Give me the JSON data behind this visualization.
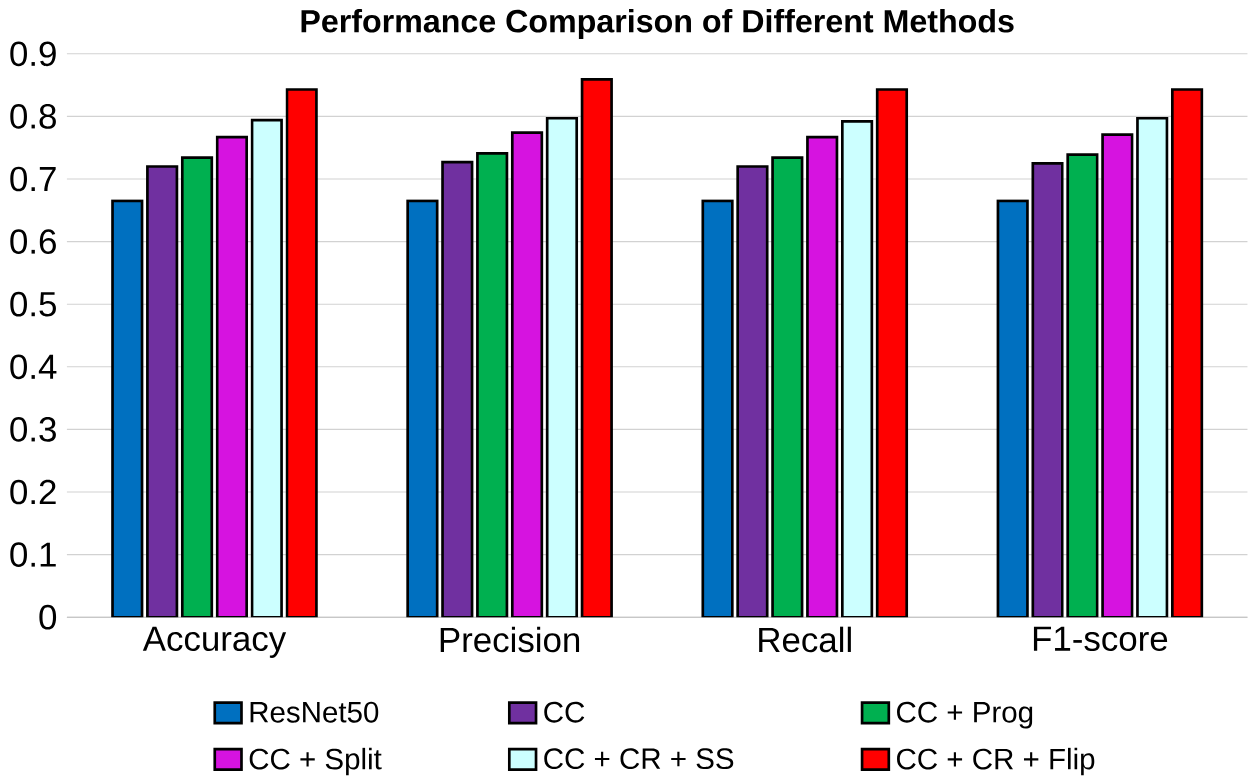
{
  "chart_data": {
    "type": "bar",
    "title": "Performance Comparison of Different Methods",
    "categories": [
      "Accuracy",
      "Precision",
      "Recall",
      "F1-score"
    ],
    "series": [
      {
        "name": "ResNet50",
        "color": "#0070c0",
        "values": [
          0.665,
          0.665,
          0.665,
          0.665
        ]
      },
      {
        "name": "CC",
        "color": "#7030a0",
        "values": [
          0.72,
          0.727,
          0.72,
          0.725
        ]
      },
      {
        "name": "CC + Prog",
        "color": "#00b050",
        "values": [
          0.734,
          0.741,
          0.734,
          0.739
        ]
      },
      {
        "name": "CC + Split",
        "color": "#d613e0",
        "values": [
          0.767,
          0.774,
          0.767,
          0.771
        ]
      },
      {
        "name": "CC + CR + SS",
        "color": "#ccffff",
        "values": [
          0.794,
          0.797,
          0.792,
          0.797
        ]
      },
      {
        "name": "CC + CR + Flip",
        "color": "#ff0000",
        "values": [
          0.843,
          0.859,
          0.843,
          0.843
        ]
      }
    ],
    "ylim": [
      0,
      0.9
    ],
    "yticks": [
      0,
      0.1,
      0.2,
      0.3,
      0.4,
      0.5,
      0.6,
      0.7,
      0.8,
      0.9
    ],
    "grid": "y",
    "legend": "bottom"
  }
}
